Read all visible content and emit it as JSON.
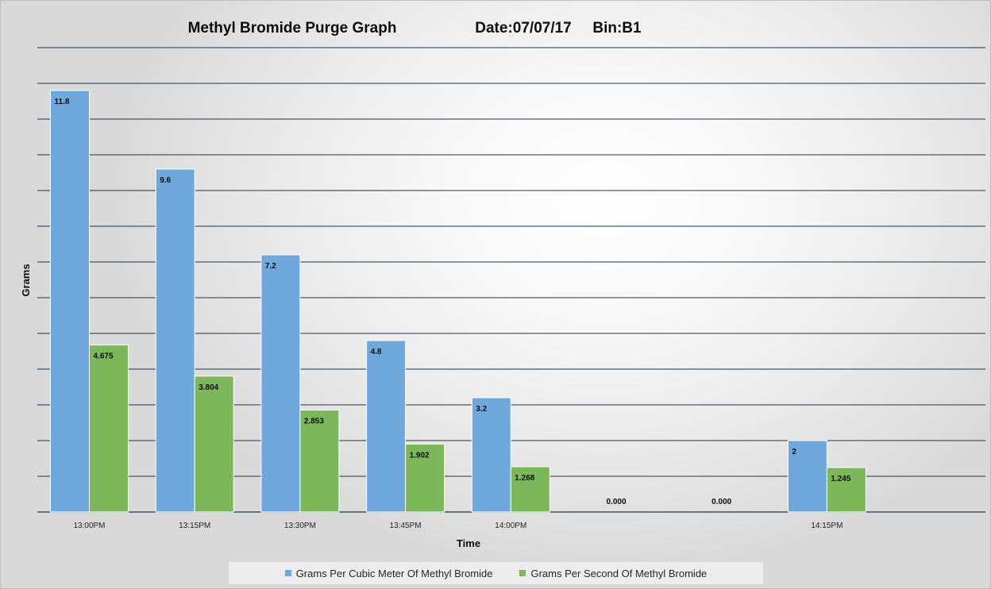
{
  "chart_data": {
    "type": "bar",
    "title": "Methyl Bromide Purge Graph",
    "title_date": "Date:07/07/17",
    "title_bin": "Bin:B1",
    "xlabel": "Time",
    "ylabel": "Grams",
    "categories": [
      "13:00PM",
      "13:15PM",
      "13:30PM",
      "13:45PM",
      "14:00PM",
      "",
      "",
      "14:15PM"
    ],
    "ylim": [
      0,
      13
    ],
    "y_gridlines": [
      1,
      2,
      3,
      4,
      5,
      6,
      7,
      8,
      9,
      10,
      11,
      12,
      13
    ],
    "grid": true,
    "legend_position": "bottom",
    "series": [
      {
        "name": "Grams Per Cubic Meter Of Methyl Bromide",
        "color": "#6fa8dc",
        "values": [
          11.8,
          9.6,
          7.2,
          4.8,
          3.2,
          null,
          null,
          2
        ],
        "labels": [
          "11.8",
          "9.6",
          "7.2",
          "4.8",
          "3.2",
          "",
          "",
          "2"
        ]
      },
      {
        "name": "Grams Per Second Of Methyl Bromide",
        "color": "#7cb85a",
        "values": [
          4.675,
          3.804,
          2.853,
          1.902,
          1.268,
          0,
          0,
          1.245
        ],
        "labels": [
          "4.675",
          "3.804",
          "2.853",
          "1.902",
          "1.268",
          "0.000",
          "0.000",
          "1.245"
        ]
      }
    ]
  }
}
